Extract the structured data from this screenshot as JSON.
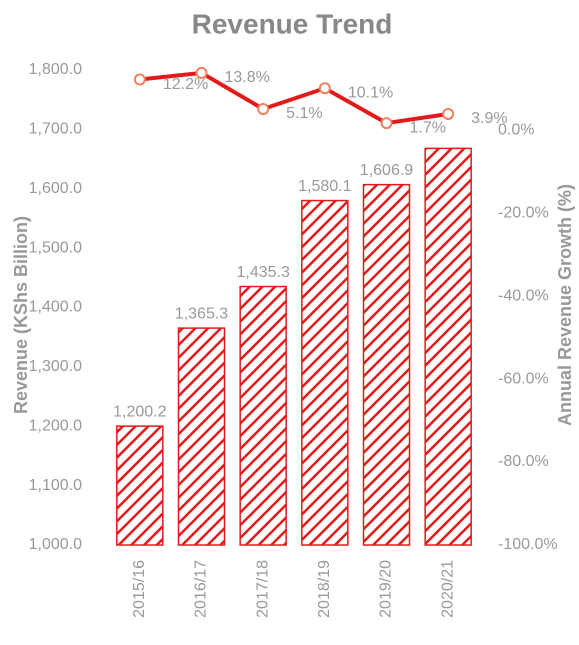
{
  "chart_data": {
    "type": "bar",
    "title": "Revenue Trend",
    "y_label": "Revenue (KShs Billion)",
    "y2_label": "Annual Revenue Growth (%)",
    "categories": [
      "2015/16",
      "2016/17",
      "2017/18",
      "2018/19",
      "2019/20",
      "2020/21"
    ],
    "series": [
      {
        "name": "Revenue",
        "type": "bar",
        "color": "#e31a1c",
        "pattern": "hatch",
        "values": [
          1200.2,
          1365.3,
          1435.3,
          1580.1,
          1606.9,
          1668
        ],
        "value_labels": [
          "1,200.2",
          "1,365.3",
          "1,435.3",
          "1,580.1",
          "1,606.9",
          null
        ]
      },
      {
        "name": "Annual Revenue Growth",
        "type": "line",
        "axis": "y2",
        "color": "#e31a1c",
        "marker_color": "#f08060",
        "values": [
          12.2,
          13.8,
          5.1,
          10.1,
          1.7,
          3.9
        ],
        "value_labels": [
          "12.2%",
          "13.8%",
          "5.1%",
          "10.1%",
          "1.7%",
          "3.9%"
        ]
      }
    ],
    "ylim": [
      1000,
      1800
    ],
    "yticks": [
      {
        "value": 1000,
        "label": "1,000.0"
      },
      {
        "value": 1100,
        "label": "1,100.0"
      },
      {
        "value": 1200,
        "label": "1,200.0"
      },
      {
        "value": 1300,
        "label": "1,300.0"
      },
      {
        "value": 1400,
        "label": "1,400.0"
      },
      {
        "value": 1500,
        "label": "1,500.0"
      },
      {
        "value": 1600,
        "label": "1,600.0"
      },
      {
        "value": 1700,
        "label": "1,700.0"
      },
      {
        "value": 1800,
        "label": "1,800.0"
      }
    ],
    "y2lim": [
      -100,
      14.5
    ],
    "y2ticks": [
      {
        "value": -100,
        "label": "-100.0%"
      },
      {
        "value": -80,
        "label": "-80.0%"
      },
      {
        "value": -60,
        "label": "-60.0%"
      },
      {
        "value": -40,
        "label": "-40.0%"
      },
      {
        "value": -20,
        "label": "-20.0%"
      },
      {
        "value": 0,
        "label": "0.0%"
      }
    ],
    "grid": false
  }
}
